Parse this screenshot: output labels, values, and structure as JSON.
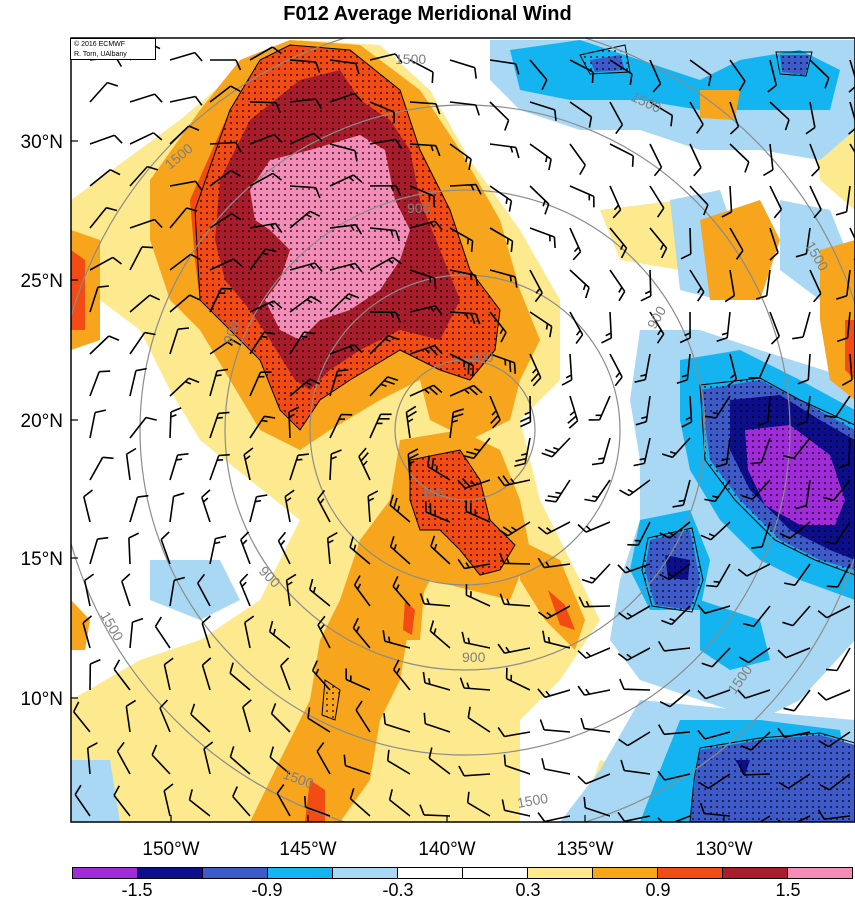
{
  "title": "F012 Average Meridional Wind",
  "credit": {
    "line1": "© 2016 ECMWF",
    "line2": "R. Torn, UAlbany"
  },
  "latitude_labels": [
    "30°N",
    "25°N",
    "20°N",
    "15°N",
    "10°N"
  ],
  "longitude_labels": [
    "150°W",
    "145°W",
    "140°W",
    "135°W",
    "130°W"
  ],
  "contour_labels": [
    "1500",
    "1500",
    "1500",
    "1500",
    "1500",
    "1500",
    "1500",
    "1500",
    "900",
    "900",
    "900",
    "900",
    "900",
    "300",
    "300"
  ],
  "colorbar": {
    "colors": [
      "#a02bd8",
      "#0c0e8c",
      "#3d5ac8",
      "#14b4f0",
      "#a8d8f4",
      "#ffffff",
      "#ffffff",
      "#fde98e",
      "#f7a51c",
      "#f24b14",
      "#a81c2c",
      "#f48cb8"
    ],
    "labels": [
      "-1.5",
      "-0.9",
      "-0.3",
      "0.3",
      "0.9",
      "1.5"
    ]
  },
  "colors": {
    "pink": "#f48cb8",
    "darkred": "#a81c2c",
    "red": "#f24b14",
    "orange": "#f7a51c",
    "yellow": "#fde98e",
    "lightblue": "#a8d8f4",
    "cyan": "#14b4f0",
    "blue": "#3d5ac8",
    "navy": "#0c0e8c",
    "purple": "#a02bd8",
    "range_ring": "#8c8c8c"
  }
}
